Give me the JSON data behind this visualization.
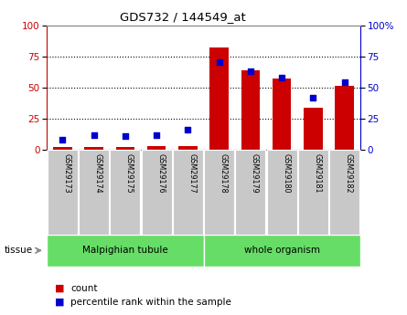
{
  "title": "GDS732 / 144549_at",
  "categories": [
    "GSM29173",
    "GSM29174",
    "GSM29175",
    "GSM29176",
    "GSM29177",
    "GSM29178",
    "GSM29179",
    "GSM29180",
    "GSM29181",
    "GSM29182"
  ],
  "count_values": [
    2,
    2,
    2,
    3,
    3,
    82,
    64,
    57,
    34,
    51
  ],
  "percentile_values": [
    8,
    12,
    11,
    12,
    16,
    70,
    63,
    58,
    42,
    54
  ],
  "tissue_groups": [
    {
      "label": "Malpighian tubule",
      "start": 0,
      "end": 5
    },
    {
      "label": "whole organism",
      "start": 5,
      "end": 10
    }
  ],
  "bar_color": "#cc0000",
  "dot_color": "#0000cc",
  "left_axis_color": "#cc0000",
  "right_axis_color": "#0000cc",
  "ylim": [
    0,
    100
  ],
  "yticks": [
    0,
    25,
    50,
    75,
    100
  ],
  "grid_color": "#000000",
  "bg_color": "#ffffff",
  "tissue_color": "#66dd66",
  "xticklabel_bg": "#c8c8c8",
  "legend_count_color": "#cc0000",
  "legend_pct_color": "#0000cc",
  "border_color": "#888888"
}
